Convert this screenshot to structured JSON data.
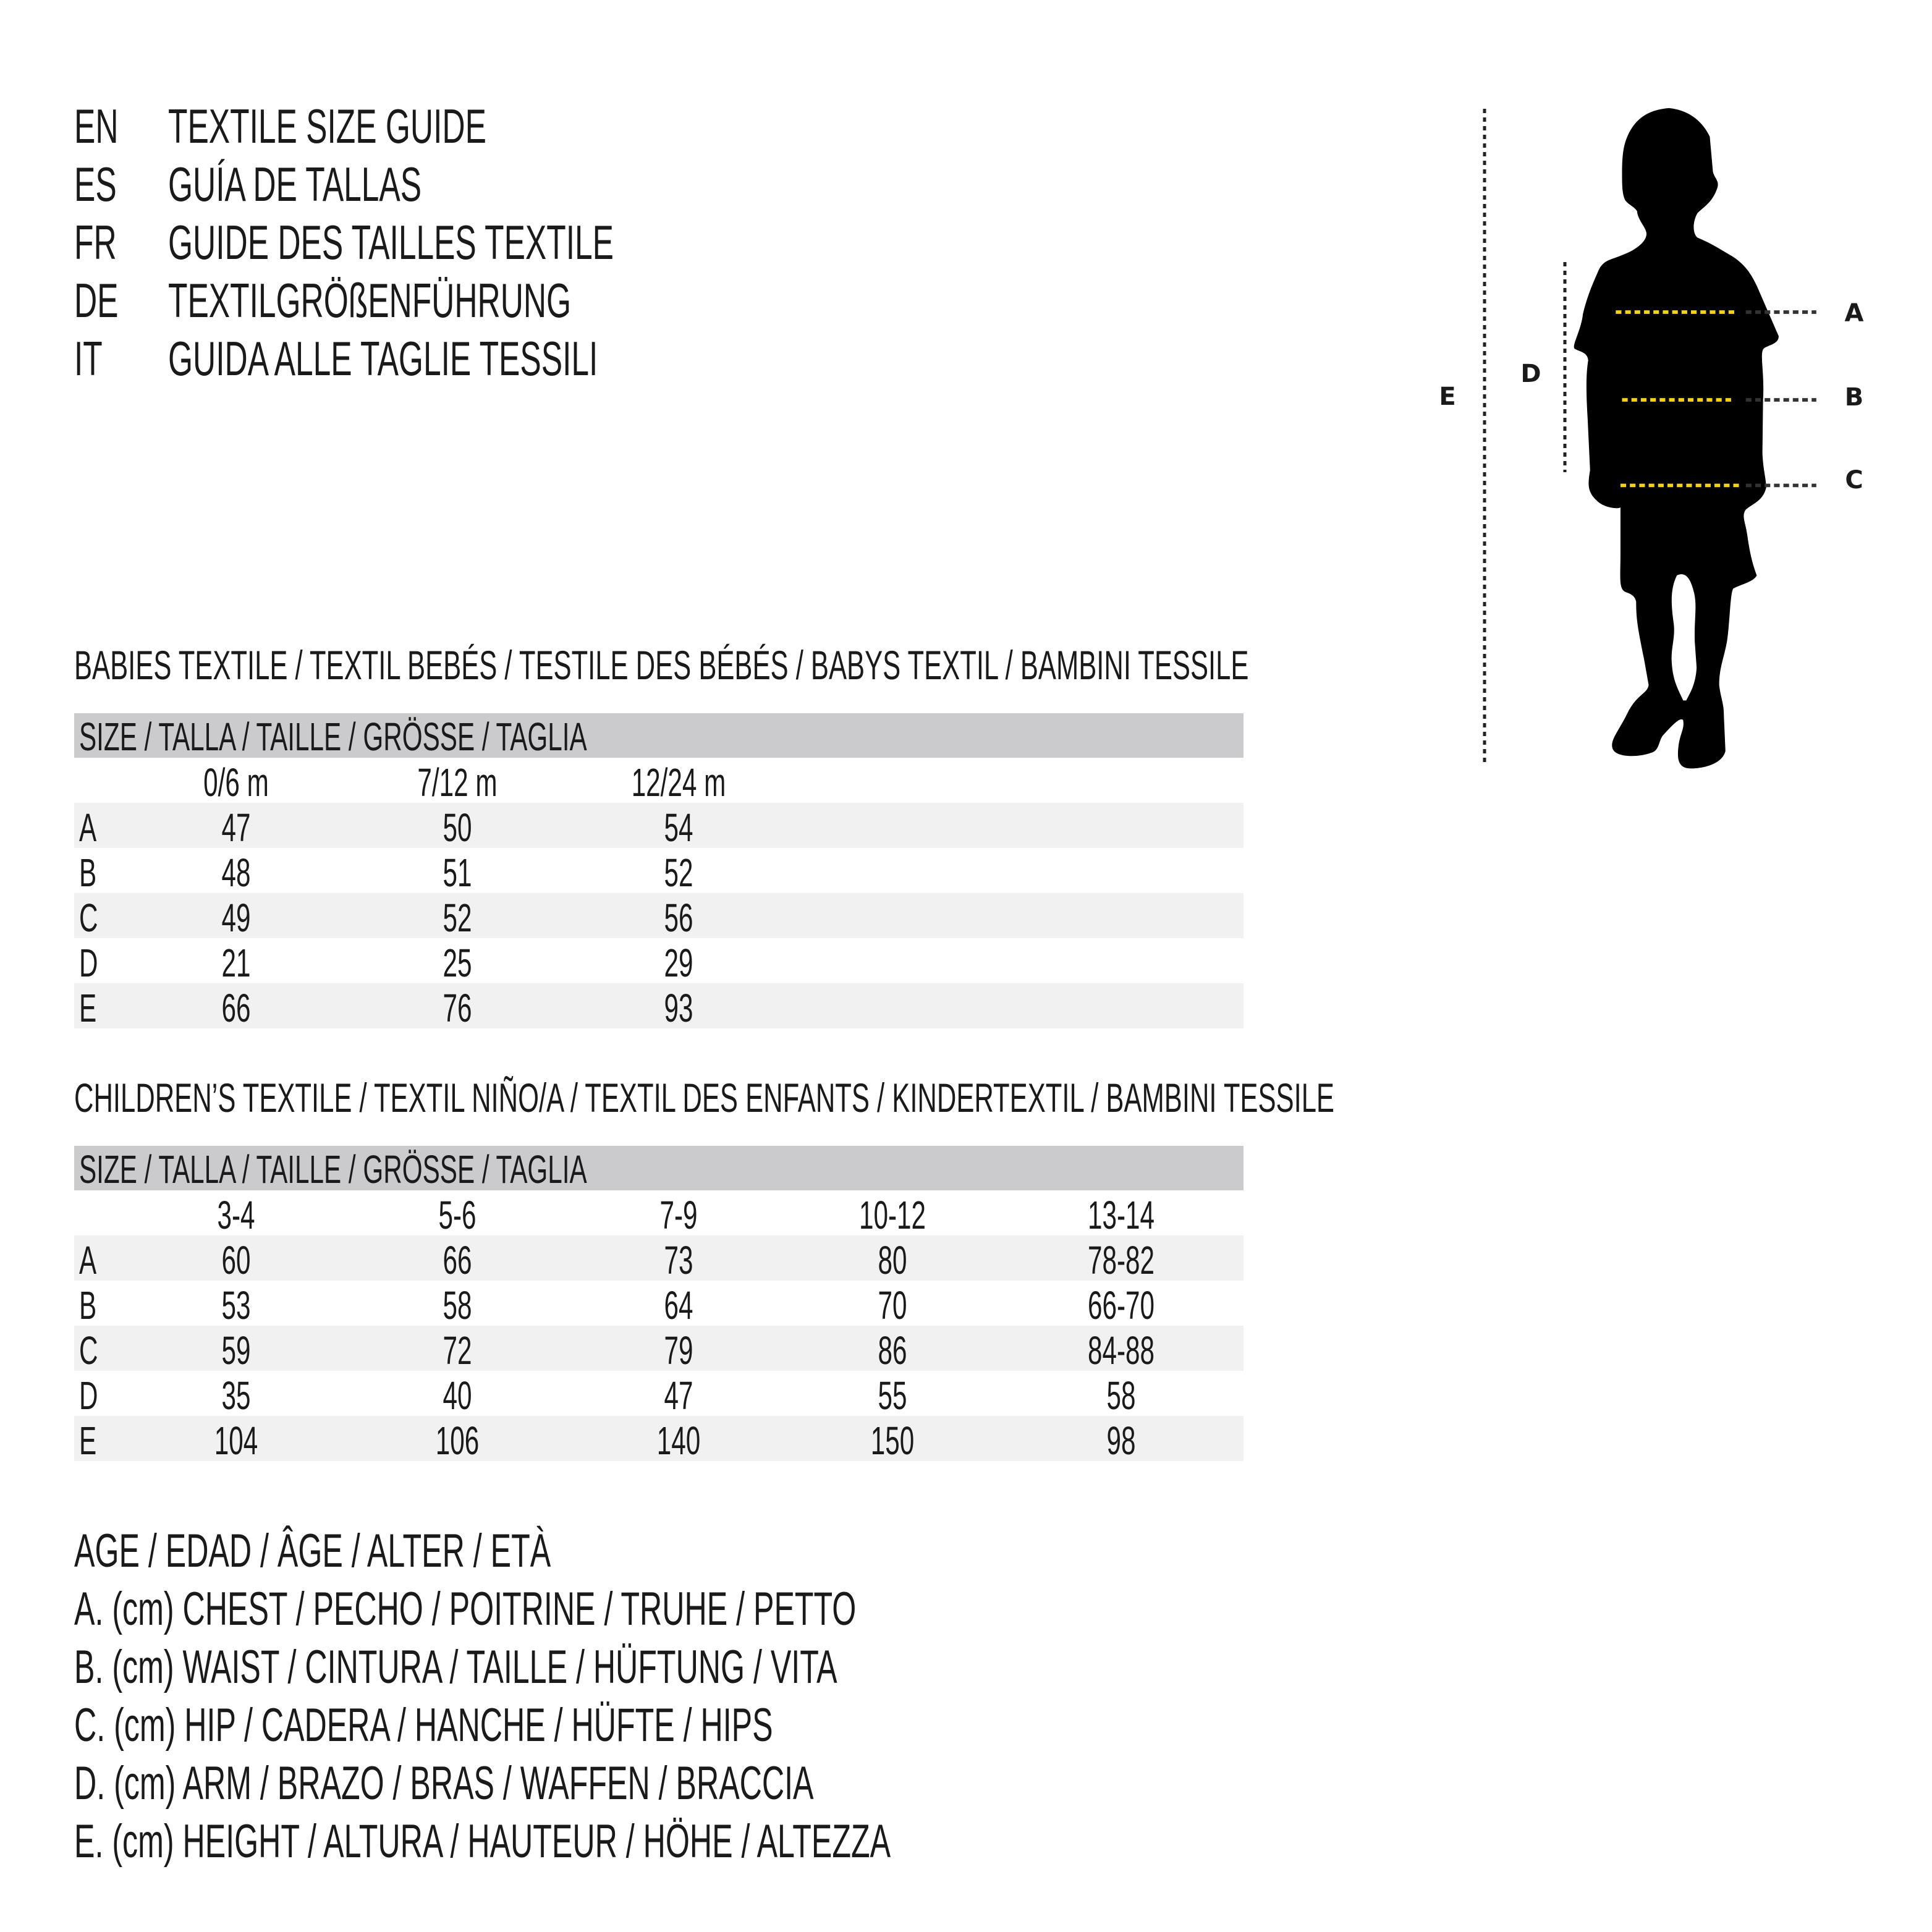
{
  "titles": [
    {
      "code": "EN",
      "text": "TEXTILE SIZE GUIDE"
    },
    {
      "code": "ES",
      "text": "GUÍA DE TALLAS"
    },
    {
      "code": "FR",
      "text": "GUIDE DES TAILLES TEXTILE"
    },
    {
      "code": "DE",
      "text": "TEXTILGRÖßENFÜHRUNG"
    },
    {
      "code": "IT",
      "text": "GUIDA ALLE TAGLIE TESSILI"
    }
  ],
  "diagram": {
    "labels": {
      "A": "A",
      "B": "B",
      "C": "C",
      "D": "D",
      "E": "E"
    },
    "colors": {
      "measure_line": "#f2d21b",
      "guide_line": "#222222",
      "silhouette": "#000000"
    }
  },
  "babies": {
    "heading": "BABIES TEXTILE / TEXTIL BEBÉS / TESTILE DES BÉBÉS / BABYS TEXTIL / BAMBINI TESSILE",
    "size_label": "SIZE / TALLA / TAILLE / GRÖSSE / TAGLIA",
    "columns": [
      "0/6 m",
      "7/12 m",
      "12/24 m"
    ],
    "rows": [
      {
        "label": "A",
        "values": [
          "47",
          "50",
          "54"
        ]
      },
      {
        "label": "B",
        "values": [
          "48",
          "51",
          "52"
        ]
      },
      {
        "label": "C",
        "values": [
          "49",
          "52",
          "56"
        ]
      },
      {
        "label": "D",
        "values": [
          "21",
          "25",
          "29"
        ]
      },
      {
        "label": "E",
        "values": [
          "66",
          "76",
          "93"
        ]
      }
    ]
  },
  "children": {
    "heading": "CHILDREN’S TEXTILE / TEXTIL NIÑO/A / TEXTIL DES ENFANTS / KINDERTEXTIL / BAMBINI TESSILE",
    "size_label": "SIZE / TALLA / TAILLE / GRÖSSE / TAGLIA",
    "columns": [
      "3-4",
      "5-6",
      "7-9",
      "10-12",
      "13-14"
    ],
    "rows": [
      {
        "label": "A",
        "values": [
          "60",
          "66",
          "73",
          "80",
          "78-82"
        ]
      },
      {
        "label": "B",
        "values": [
          "53",
          "58",
          "64",
          "70",
          "66-70"
        ]
      },
      {
        "label": "C",
        "values": [
          "59",
          "72",
          "79",
          "86",
          "84-88"
        ]
      },
      {
        "label": "D",
        "values": [
          "35",
          "40",
          "47",
          "55",
          "58"
        ]
      },
      {
        "label": "E",
        "values": [
          "104",
          "106",
          "140",
          "150",
          "98"
        ]
      }
    ]
  },
  "legend": [
    "AGE / EDAD / ÂGE / ALTER / ETÀ",
    "A. (cm) CHEST / PECHO / POITRINE / TRUHE / PETTO",
    "B. (cm) WAIST / CINTURA / TAILLE / HÜFTUNG / VITA",
    "C. (cm) HIP / CADERA / HANCHE / HÜFTE / HIPS",
    "D. (cm) ARM / BRAZO / BRAS / WAFFEN / BRACCIA",
    "E. (cm) HEIGHT / ALTURA / HAUTEUR / HÖHE / ALTEZZA"
  ]
}
